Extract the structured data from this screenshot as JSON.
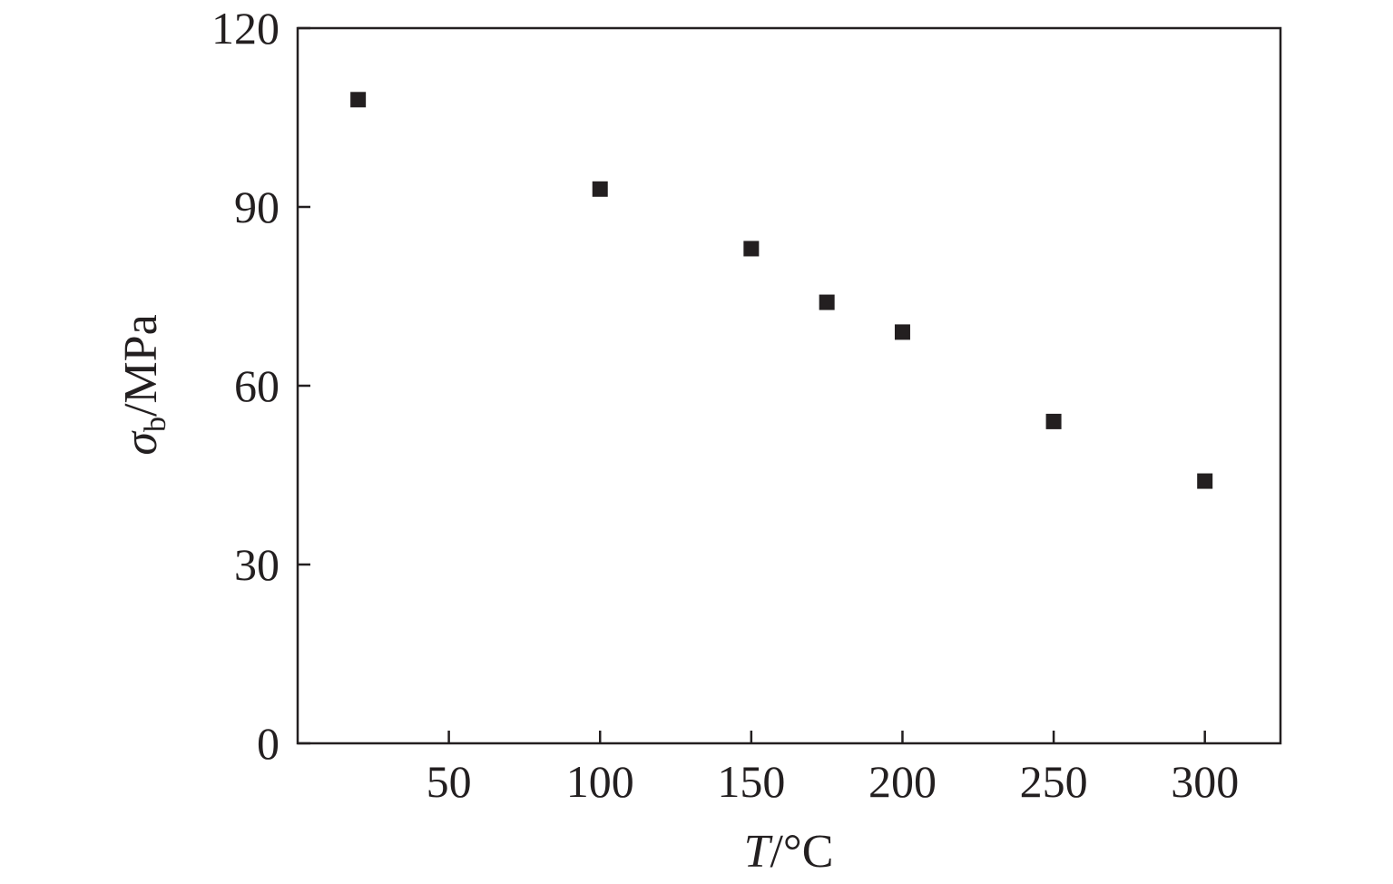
{
  "chart_data": {
    "type": "scatter",
    "title": "",
    "xlabel": {
      "symbol": "T",
      "unit": "/°C"
    },
    "ylabel": {
      "symbol": "σ",
      "subscript": "b",
      "unit": "/MPa"
    },
    "xlim": [
      0,
      325
    ],
    "ylim": [
      0,
      120
    ],
    "xticks": [
      50,
      100,
      150,
      200,
      250,
      300
    ],
    "yticks": [
      0,
      30,
      60,
      90,
      120
    ],
    "grid": false,
    "marker": "square",
    "marker_color": "#231f20",
    "series": [
      {
        "points": [
          {
            "x": 20,
            "y": 108
          },
          {
            "x": 100,
            "y": 93
          },
          {
            "x": 150,
            "y": 83
          },
          {
            "x": 175,
            "y": 74
          },
          {
            "x": 200,
            "y": 69
          },
          {
            "x": 250,
            "y": 54
          },
          {
            "x": 300,
            "y": 44
          }
        ]
      }
    ]
  }
}
